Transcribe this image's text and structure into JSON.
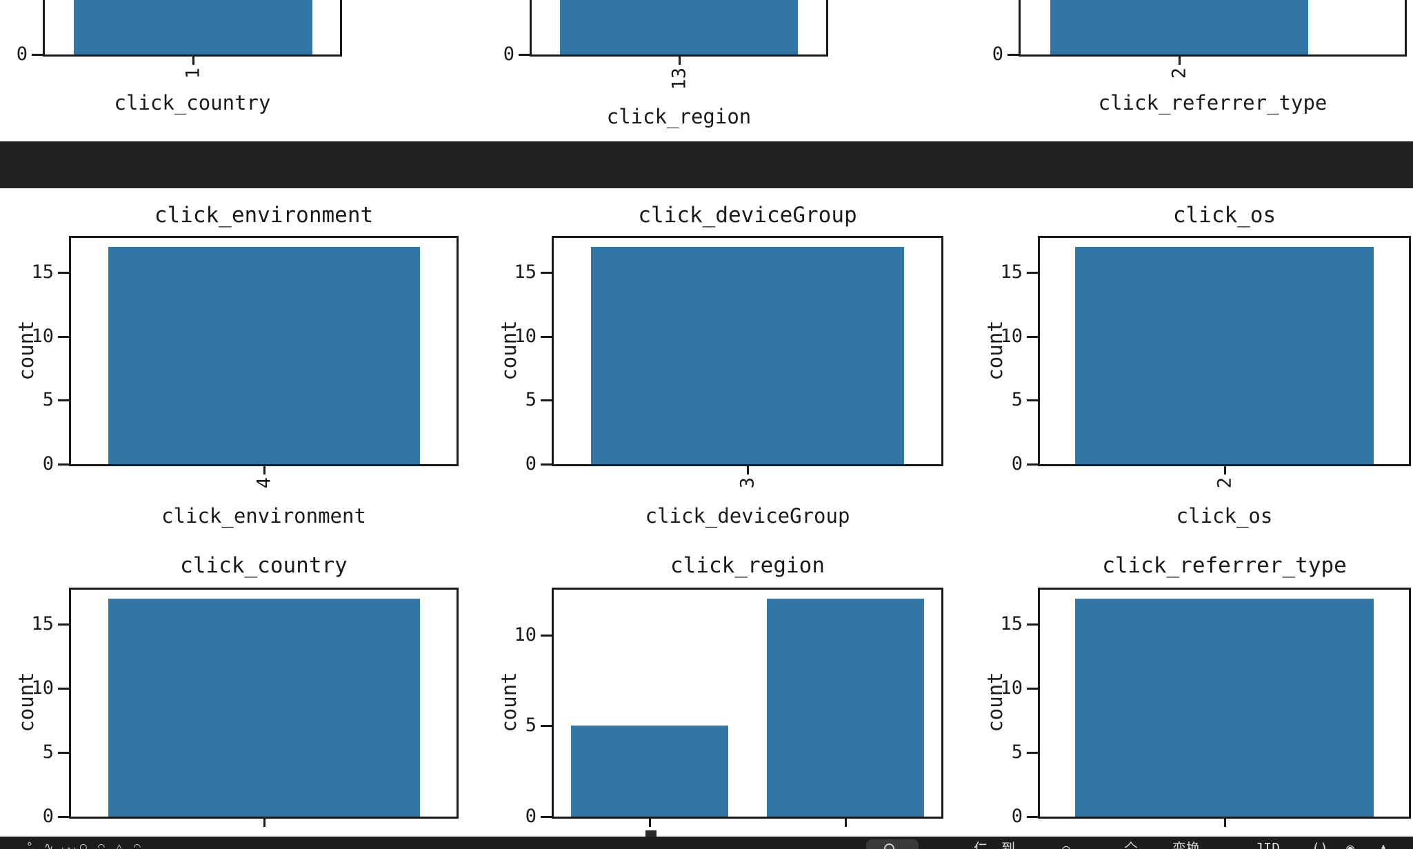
{
  "colors": {
    "bar": "#3276a6",
    "axis": "#1a1a1a",
    "separator": "#212121",
    "taskbar_bg": "#1d1d1d",
    "search_pill_bg": "#3a3a3a",
    "fragment_text": "#d9d9d9"
  },
  "chart_data": [
    {
      "id": "fig1-click_country",
      "type": "bar",
      "row": "r0",
      "col": 0,
      "title": "",
      "xlabel": "click_country",
      "ylabel": "",
      "categories": [
        "1"
      ],
      "values": [
        null
      ],
      "yticks": [
        0
      ],
      "note": "bottom sliver of chart only; bar height cut off at top of screen"
    },
    {
      "id": "fig1-click_region",
      "type": "bar",
      "row": "r0",
      "col": 1,
      "title": "",
      "xlabel": "click_region",
      "ylabel": "",
      "categories": [
        "13"
      ],
      "values": [
        null
      ],
      "yticks": [
        0
      ],
      "note": "bottom sliver of chart only"
    },
    {
      "id": "fig1-click_referrer_type",
      "type": "bar",
      "row": "r0",
      "col": 2,
      "title": "",
      "xlabel": "click_referrer_type",
      "ylabel": "",
      "categories": [
        "2"
      ],
      "values": [
        null
      ],
      "yticks": [
        0
      ],
      "note": "bottom sliver of chart only"
    },
    {
      "id": "fig2-click_environment",
      "type": "bar",
      "row": "r1",
      "col": 0,
      "title": "click_environment",
      "xlabel": "click_environment",
      "ylabel": "count",
      "categories": [
        "4"
      ],
      "values": [
        17
      ],
      "yticks": [
        0,
        5,
        10,
        15
      ],
      "ylim": [
        0,
        17.85
      ]
    },
    {
      "id": "fig2-click_deviceGroup",
      "type": "bar",
      "row": "r1",
      "col": 1,
      "title": "click_deviceGroup",
      "xlabel": "click_deviceGroup",
      "ylabel": "count",
      "categories": [
        "3"
      ],
      "values": [
        17
      ],
      "yticks": [
        0,
        5,
        10,
        15
      ],
      "ylim": [
        0,
        17.85
      ]
    },
    {
      "id": "fig2-click_os",
      "type": "bar",
      "row": "r1",
      "col": 2,
      "title": "click_os",
      "xlabel": "click_os",
      "ylabel": "count",
      "categories": [
        "2"
      ],
      "values": [
        17
      ],
      "yticks": [
        0,
        5,
        10,
        15
      ],
      "ylim": [
        0,
        17.85
      ]
    },
    {
      "id": "fig2-click_country",
      "type": "bar",
      "row": "r2",
      "col": 0,
      "title": "click_country",
      "xlabel": "",
      "ylabel": "count",
      "categories": [
        ""
      ],
      "values": [
        17
      ],
      "yticks": [
        0,
        5,
        10,
        15
      ],
      "ylim": [
        0,
        17.85
      ],
      "note": "x tick labels and xlabel hidden behind taskbar"
    },
    {
      "id": "fig2-click_region",
      "type": "bar",
      "row": "r2",
      "col": 1,
      "title": "click_region",
      "xlabel": "",
      "ylabel": "count",
      "categories": [
        "",
        ""
      ],
      "values": [
        5,
        12
      ],
      "yticks": [
        0,
        5,
        10
      ],
      "ylim": [
        0,
        12.6
      ],
      "note": "x tick labels cut off; top of first rotated tick label barely visible above taskbar"
    },
    {
      "id": "fig2-click_referrer_type",
      "type": "bar",
      "row": "r2",
      "col": 2,
      "title": "click_referrer_type",
      "xlabel": "",
      "ylabel": "count",
      "categories": [
        ""
      ],
      "values": [
        17
      ],
      "yticks": [
        0,
        5,
        10,
        15
      ],
      "ylim": [
        0,
        17.85
      ]
    }
  ],
  "taskbar": {
    "search": {
      "icon": "magnifier-icon"
    },
    "left_icon_tops": [
      "°",
      "∿",
      "◡◡",
      "◯",
      "◠",
      "△",
      "◠"
    ],
    "fragments": [
      "仁",
      "到",
      "⌒",
      "亽",
      "变换",
      "JID",
      "()",
      "◉",
      "♟"
    ],
    "note": "taskbar is almost entirely cut off at bottom edge; only glyph tops visible"
  }
}
